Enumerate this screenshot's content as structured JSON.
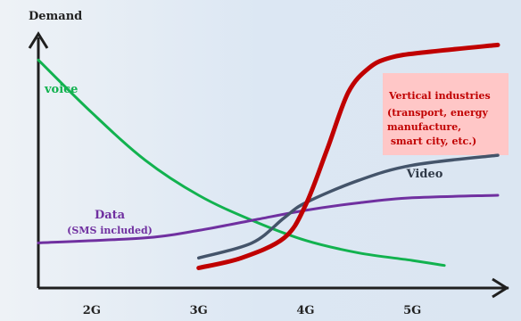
{
  "chart_data": {
    "type": "line",
    "ylabel": "Demand",
    "xlabel": "",
    "categories": [
      "2G",
      "3G",
      "4G",
      "5G"
    ],
    "xlim": [
      1.5,
      5.9
    ],
    "ylim": [
      0,
      10
    ],
    "annotation_lines": [
      "(transport, energy",
      "manufacture,",
      " smart city, etc.)"
    ],
    "series": [
      {
        "name": "voice",
        "color": "#12b24f",
        "label_lines": [
          "voice"
        ],
        "x": [
          1.5,
          2.0,
          2.5,
          3.0,
          3.5,
          4.0,
          4.5,
          5.0,
          5.3
        ],
        "y": [
          9.1,
          7.0,
          5.1,
          3.7,
          2.7,
          1.9,
          1.4,
          1.1,
          0.9
        ]
      },
      {
        "name": "Data",
        "color": "#7030a0",
        "label_lines": [
          "Data",
          "(SMS included)"
        ],
        "x": [
          1.5,
          2.5,
          3.0,
          3.5,
          4.0,
          4.5,
          5.0,
          5.8
        ],
        "y": [
          1.8,
          2.0,
          2.3,
          2.7,
          3.1,
          3.4,
          3.6,
          3.7
        ]
      },
      {
        "name": "Video",
        "color": "#44546a",
        "label_lines": [
          "Video"
        ],
        "x": [
          3.0,
          3.5,
          3.8,
          4.0,
          4.5,
          5.0,
          5.8
        ],
        "y": [
          1.2,
          1.8,
          2.8,
          3.4,
          4.3,
          4.9,
          5.3
        ]
      },
      {
        "name": "Vertical industries",
        "color": "#c00000",
        "label_lines": [
          "Vertical industries"
        ],
        "x": [
          3.0,
          3.4,
          3.8,
          4.0,
          4.2,
          4.4,
          4.6,
          4.8,
          5.1,
          5.8
        ],
        "y": [
          0.8,
          1.2,
          2.0,
          3.3,
          5.5,
          7.8,
          8.8,
          9.2,
          9.4,
          9.7
        ]
      }
    ]
  }
}
